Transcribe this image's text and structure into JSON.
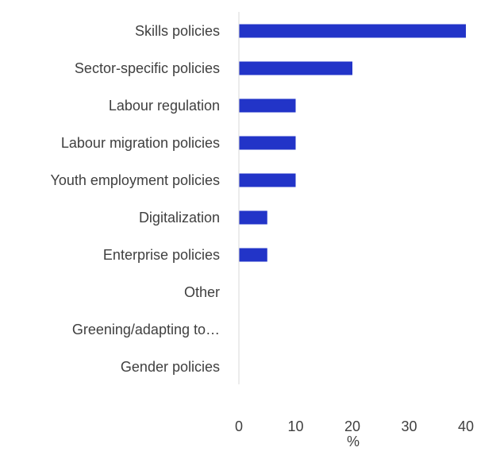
{
  "chart_data": {
    "type": "bar",
    "orientation": "horizontal",
    "categories": [
      "Skills policies",
      "Sector-specific policies",
      "Labour regulation",
      "Labour migration policies",
      "Youth employment policies",
      "Digitalization",
      "Enterprise policies",
      "Other",
      "Greening/adapting to…",
      "Gender policies"
    ],
    "values": [
      40,
      20,
      10,
      10,
      10,
      5,
      5,
      0,
      0,
      0
    ],
    "xlabel": "%",
    "xlim": [
      0,
      40
    ],
    "xticks": [
      "0",
      "10",
      "20",
      "30",
      "40"
    ],
    "grid": false,
    "legend": "none",
    "bar_color": "#2234c8",
    "axis_color": "#d9d9d9",
    "text_color": "#3f3f3f"
  }
}
